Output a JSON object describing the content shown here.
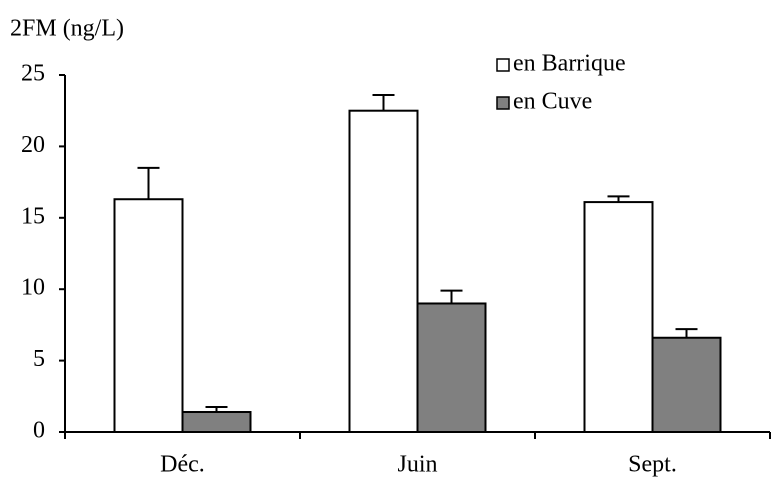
{
  "chart_data": {
    "type": "bar",
    "y_label": "2FM (ng/L)",
    "categories": [
      "Déc.",
      "Juin",
      "Sept."
    ],
    "series": [
      {
        "name": "en Barrique",
        "color": "#ffffff",
        "values": [
          16.3,
          22.5,
          16.1
        ],
        "errors": [
          2.2,
          1.1,
          0.4
        ]
      },
      {
        "name": "en Cuve",
        "color": "#808080",
        "values": [
          1.4,
          9.0,
          6.6
        ],
        "errors": [
          0.35,
          0.9,
          0.6
        ]
      }
    ],
    "ylim": [
      0,
      25
    ],
    "yticks": [
      0,
      5,
      10,
      15,
      20,
      25
    ],
    "grid": false,
    "legend": "top-right"
  }
}
